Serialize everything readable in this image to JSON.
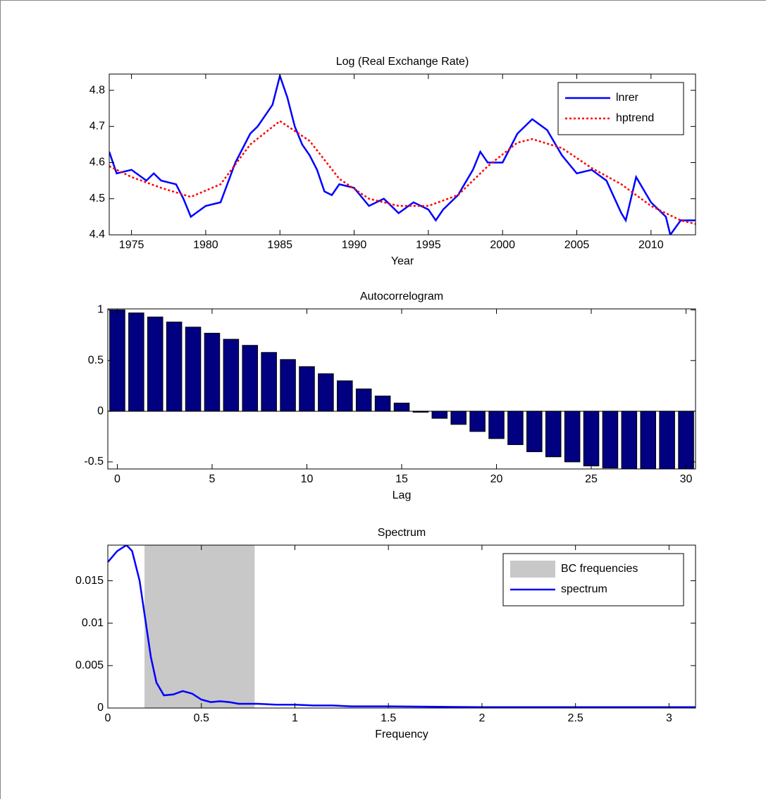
{
  "chart_data": [
    {
      "type": "line",
      "title": "Log (Real Exchange Rate)",
      "xlabel": "Year",
      "xlim": [
        1973.5,
        2013
      ],
      "xticks": [
        1975,
        1980,
        1985,
        1990,
        1995,
        2000,
        2005,
        2010
      ],
      "ylim": [
        4.4,
        4.845
      ],
      "yticks": [
        4.4,
        4.5,
        4.6,
        4.7,
        4.8
      ],
      "legend": "upper right",
      "series": [
        {
          "name": "lnrer",
          "color": "#0000ff",
          "linestyle": "solid",
          "x": [
            1973.5,
            1974,
            1975,
            1976,
            1976.5,
            1977,
            1978,
            1978.5,
            1979,
            1980,
            1981,
            1982,
            1983,
            1983.5,
            1984,
            1984.5,
            1985,
            1985.5,
            1986,
            1986.5,
            1987,
            1987.5,
            1988,
            1988.5,
            1989,
            1990,
            1991,
            1992,
            1993,
            1994,
            1995,
            1995.5,
            1996,
            1997,
            1998,
            1998.5,
            1999,
            2000,
            2001,
            2002,
            2003,
            2004,
            2005,
            2006,
            2007,
            2008,
            2008.3,
            2009,
            2010,
            2011,
            2011.3,
            2012,
            2013
          ],
          "values": [
            4.63,
            4.57,
            4.58,
            4.55,
            4.57,
            4.55,
            4.54,
            4.5,
            4.45,
            4.48,
            4.49,
            4.6,
            4.68,
            4.7,
            4.73,
            4.76,
            4.84,
            4.78,
            4.7,
            4.65,
            4.62,
            4.58,
            4.52,
            4.51,
            4.54,
            4.53,
            4.48,
            4.5,
            4.46,
            4.49,
            4.47,
            4.44,
            4.47,
            4.51,
            4.58,
            4.63,
            4.6,
            4.6,
            4.68,
            4.72,
            4.69,
            4.62,
            4.57,
            4.58,
            4.55,
            4.46,
            4.44,
            4.56,
            4.49,
            4.45,
            4.4,
            4.44,
            4.44
          ]
        },
        {
          "name": "hptrend",
          "color": "#ff0000",
          "linestyle": "dotted",
          "x": [
            1973.5,
            1975,
            1977,
            1979,
            1981,
            1983,
            1985,
            1987,
            1989,
            1991,
            1993,
            1995,
            1997,
            1999,
            2001,
            2002,
            2004,
            2006,
            2008,
            2010,
            2012,
            2013
          ],
          "values": [
            4.59,
            4.56,
            4.53,
            4.505,
            4.54,
            4.65,
            4.715,
            4.66,
            4.555,
            4.5,
            4.48,
            4.48,
            4.51,
            4.59,
            4.655,
            4.665,
            4.64,
            4.585,
            4.54,
            4.48,
            4.44,
            4.43
          ]
        }
      ]
    },
    {
      "type": "bar",
      "title": "Autocorrelogram",
      "xlabel": "Lag",
      "color": "#000080",
      "x": [
        0,
        1,
        2,
        3,
        4,
        5,
        6,
        7,
        8,
        9,
        10,
        11,
        12,
        13,
        14,
        15,
        16,
        17,
        18,
        19,
        20,
        21,
        22,
        23,
        24,
        25,
        26,
        27,
        28,
        29,
        30
      ],
      "values": [
        1,
        0.97,
        0.93,
        0.88,
        0.83,
        0.77,
        0.71,
        0.65,
        0.58,
        0.51,
        0.44,
        0.37,
        0.3,
        0.22,
        0.15,
        0.08,
        -0.01,
        -0.07,
        -0.13,
        -0.2,
        -0.27,
        -0.33,
        -0.4,
        -0.45,
        -0.5,
        -0.54,
        -0.56,
        -0.57,
        -0.57,
        -0.57,
        -0.57
      ],
      "xlim": [
        -0.5,
        30.5
      ],
      "xticks": [
        0,
        5,
        10,
        15,
        20,
        25,
        30
      ],
      "ylim": [
        -0.57,
        1.01
      ],
      "yticks": [
        -0.5,
        0,
        0.5,
        1
      ]
    },
    {
      "type": "line",
      "title": "Spectrum",
      "xlabel": "Frequency",
      "xlim": [
        0,
        3.1416
      ],
      "xticks": [
        0,
        0.5,
        1,
        1.5,
        2,
        2.5,
        3
      ],
      "ylim": [
        0,
        0.0192
      ],
      "yticks": [
        0,
        0.005,
        0.01,
        0.015
      ],
      "legend": "upper right",
      "bands": [
        {
          "name": "BC frequencies",
          "color": "#c8c8c8",
          "x0": 0.196,
          "x1": 0.785
        }
      ],
      "series": [
        {
          "name": "spectrum",
          "color": "#0000ff",
          "linestyle": "solid",
          "x": [
            0,
            0.05,
            0.1,
            0.13,
            0.17,
            0.2,
            0.23,
            0.26,
            0.3,
            0.35,
            0.4,
            0.45,
            0.5,
            0.55,
            0.6,
            0.65,
            0.7,
            0.8,
            0.9,
            1.0,
            1.1,
            1.2,
            1.3,
            1.5,
            2.0,
            2.5,
            3.14
          ],
          "values": [
            0.0172,
            0.0185,
            0.0192,
            0.0185,
            0.015,
            0.0105,
            0.006,
            0.003,
            0.0015,
            0.0016,
            0.002,
            0.0017,
            0.001,
            0.0007,
            0.0008,
            0.0007,
            0.0005,
            0.0005,
            0.0004,
            0.0004,
            0.0003,
            0.0003,
            0.0002,
            0.0002,
            0.0001,
            0.0001,
            0.0001
          ]
        }
      ]
    }
  ]
}
